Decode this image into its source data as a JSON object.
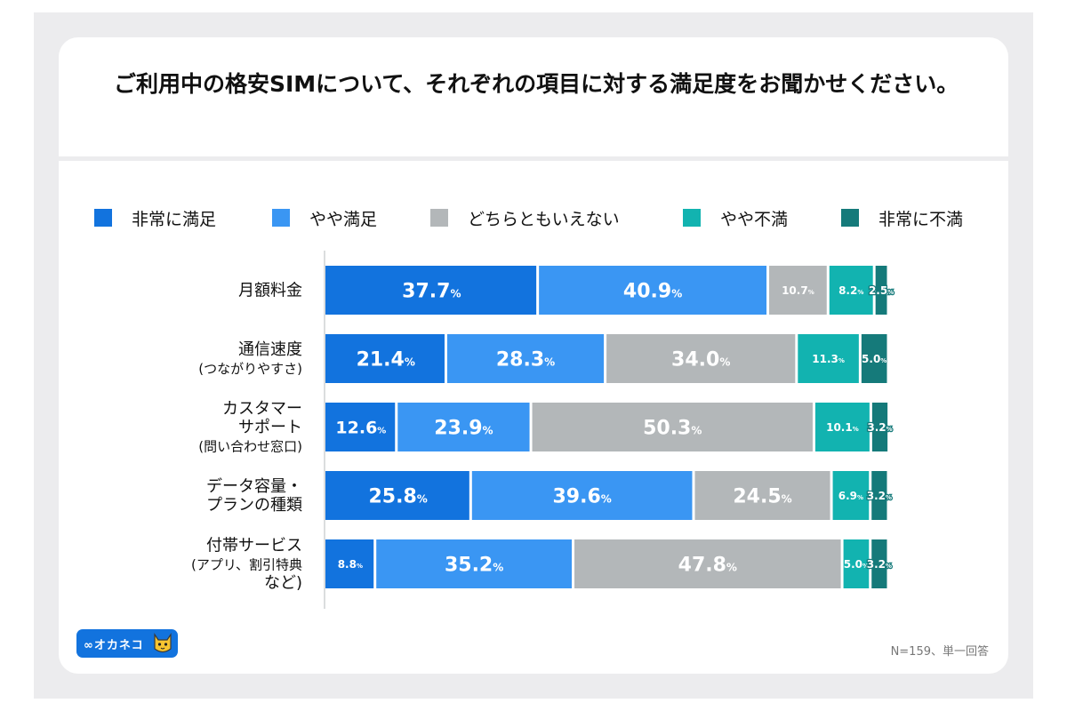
{
  "footnote": "N=159、単一回答",
  "logo": {
    "wordmark": "∞オカネコ"
  },
  "colors": {
    "background": "#ececee",
    "card": "#ffffff",
    "label_dark": "#ffffff"
  },
  "chart_data": {
    "type": "bar",
    "orientation": "horizontal",
    "stacked": true,
    "title": "ご利用中の格安SIMについて、それぞれの項目に対する満足度をお聞かせください。",
    "legend_position": "top",
    "value_suffix": "%",
    "xlim": [
      0,
      100
    ],
    "categories": [
      [
        "月額料金"
      ],
      [
        "通信速度",
        "(つながりやすさ)"
      ],
      [
        "カスタマー",
        "サポート",
        "(問い合わせ窓口)"
      ],
      [
        "データ容量・",
        "プランの種類"
      ],
      [
        "付帯サービス",
        "(アプリ、割引特典",
        "など)"
      ]
    ],
    "series": [
      {
        "name": "非常に満足",
        "color": "#1273de",
        "values": [
          37.7,
          21.4,
          12.6,
          25.8,
          8.8
        ]
      },
      {
        "name": "やや満足",
        "color": "#3a96f3",
        "values": [
          40.9,
          28.3,
          23.9,
          39.6,
          35.2
        ]
      },
      {
        "name": "どちらともいえない",
        "color": "#b3b7b9",
        "values": [
          10.7,
          34.0,
          50.3,
          24.5,
          47.8
        ]
      },
      {
        "name": "やや不満",
        "color": "#12b3b0",
        "values": [
          8.2,
          11.3,
          10.1,
          6.9,
          5.0
        ]
      },
      {
        "name": "非常に不満",
        "color": "#157a7a",
        "values": [
          2.5,
          5.0,
          3.2,
          3.2,
          3.2
        ]
      }
    ]
  }
}
